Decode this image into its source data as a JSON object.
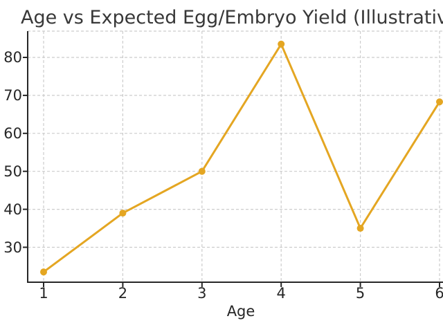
{
  "page": {
    "background": "#ffffff"
  },
  "chart_data": {
    "type": "line",
    "title": "Age vs Expected Egg/Embryo Yield (Illustrative)",
    "xlabel": "Age",
    "ylabel": "",
    "x": [
      1,
      2,
      3,
      4,
      5,
      6
    ],
    "series": [
      {
        "name": "Expected Egg/Embryo Yield",
        "values": [
          23.5,
          39,
          50,
          83.5,
          35,
          68.3
        ]
      }
    ],
    "xtick_values": [
      1,
      2,
      3,
      4,
      5,
      6
    ],
    "xtick_labels": [
      "1",
      "2",
      "3",
      "4",
      "5",
      "6"
    ],
    "ytick_values": [
      30,
      40,
      50,
      60,
      70,
      80
    ],
    "ytick_labels": [
      "30",
      "40",
      "50",
      "60",
      "70",
      "80"
    ],
    "xlim": [
      0.8,
      6.05
    ],
    "ylim": [
      20.8,
      86.9
    ],
    "grid": true,
    "grid_style": "dashed",
    "legend": false,
    "marker": "circle",
    "colors": {
      "line": "#E4A622",
      "marker": "#E4A622",
      "grid": "#cccccc",
      "axis": "#262626",
      "text": "#2e2e2e"
    }
  }
}
